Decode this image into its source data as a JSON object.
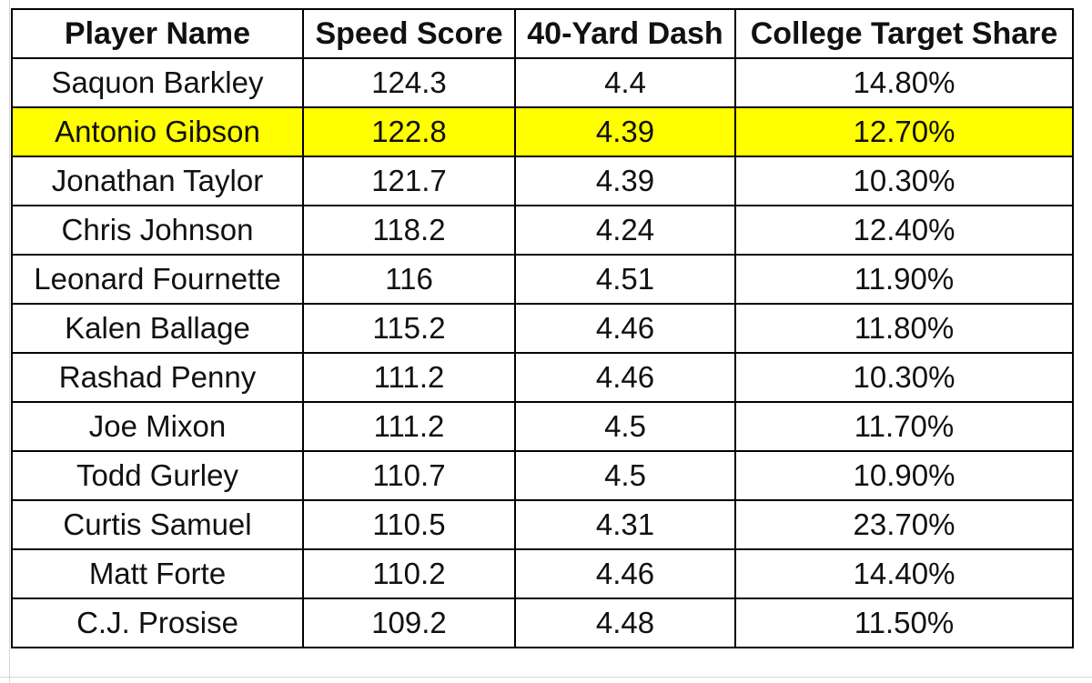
{
  "table": {
    "headers": [
      "Player Name",
      "Speed Score",
      "40-Yard Dash",
      "College Target Share"
    ],
    "highlight_color": "#ffff00",
    "rows": [
      {
        "player": "Saquon Barkley",
        "speed_score": "124.3",
        "dash": "4.4",
        "target_share": "14.80%",
        "highlighted": false
      },
      {
        "player": "Antonio Gibson",
        "speed_score": "122.8",
        "dash": "4.39",
        "target_share": "12.70%",
        "highlighted": true
      },
      {
        "player": "Jonathan Taylor",
        "speed_score": "121.7",
        "dash": "4.39",
        "target_share": "10.30%",
        "highlighted": false
      },
      {
        "player": "Chris Johnson",
        "speed_score": "118.2",
        "dash": "4.24",
        "target_share": "12.40%",
        "highlighted": false
      },
      {
        "player": "Leonard Fournette",
        "speed_score": "116",
        "dash": "4.51",
        "target_share": "11.90%",
        "highlighted": false
      },
      {
        "player": "Kalen Ballage",
        "speed_score": "115.2",
        "dash": "4.46",
        "target_share": "11.80%",
        "highlighted": false
      },
      {
        "player": "Rashad Penny",
        "speed_score": "111.2",
        "dash": "4.46",
        "target_share": "10.30%",
        "highlighted": false
      },
      {
        "player": "Joe Mixon",
        "speed_score": "111.2",
        "dash": "4.5",
        "target_share": "11.70%",
        "highlighted": false
      },
      {
        "player": "Todd Gurley",
        "speed_score": "110.7",
        "dash": "4.5",
        "target_share": "10.90%",
        "highlighted": false
      },
      {
        "player": "Curtis Samuel",
        "speed_score": "110.5",
        "dash": "4.31",
        "target_share": "23.70%",
        "highlighted": false
      },
      {
        "player": "Matt Forte",
        "speed_score": "110.2",
        "dash": "4.46",
        "target_share": "14.40%",
        "highlighted": false
      },
      {
        "player": "C.J. Prosise",
        "speed_score": "109.2",
        "dash": "4.48",
        "target_share": "11.50%",
        "highlighted": false
      }
    ]
  }
}
